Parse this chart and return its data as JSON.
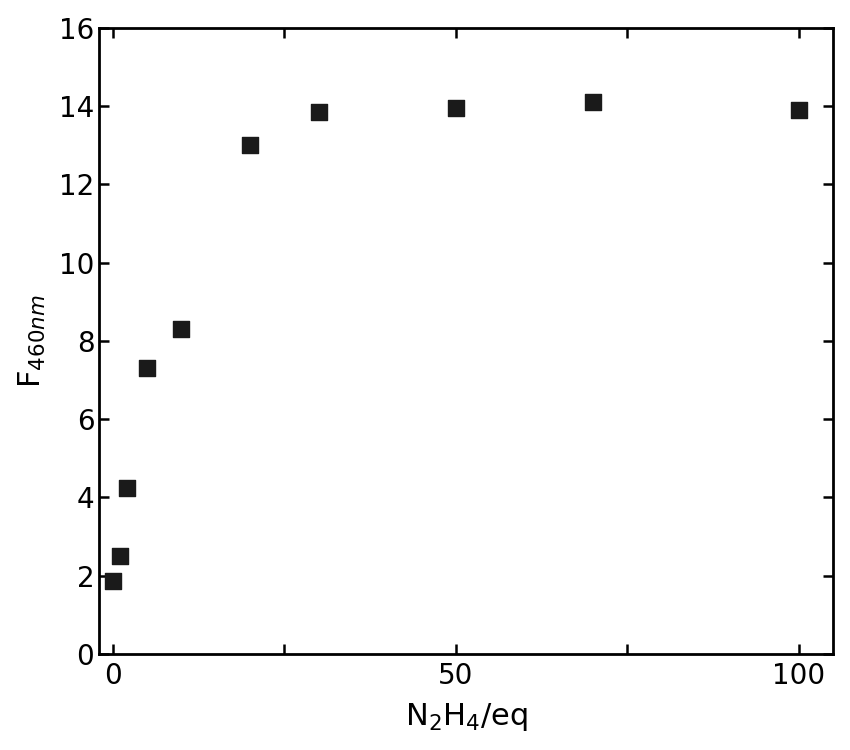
{
  "points_x": [
    0,
    1,
    2,
    5,
    10,
    20,
    30,
    50,
    70,
    100
  ],
  "points_y": [
    1.85,
    2.5,
    4.25,
    7.3,
    8.3,
    13.0,
    13.85,
    13.95,
    14.1,
    13.9
  ],
  "xlim": [
    -2,
    105
  ],
  "ylim": [
    0,
    16
  ],
  "xticks": [
    0,
    25,
    50,
    75,
    100
  ],
  "xticklabels": [
    "0",
    "",
    "50",
    "",
    "100"
  ],
  "yticks": [
    0,
    2,
    4,
    6,
    8,
    10,
    12,
    14,
    16
  ],
  "xlabel_parts": [
    "N",
    "2",
    "H",
    "4",
    "/eq"
  ],
  "ylabel": "F",
  "ylabel_sub": "460nm",
  "marker": "s",
  "marker_color": "#1a1a1a",
  "marker_size": 130,
  "figure_width": 8.5,
  "figure_height": 7.5,
  "dpi": 100,
  "background_color": "#ffffff",
  "tick_label_fontsize": 20,
  "axis_label_fontsize": 22,
  "spine_linewidth": 2.0
}
